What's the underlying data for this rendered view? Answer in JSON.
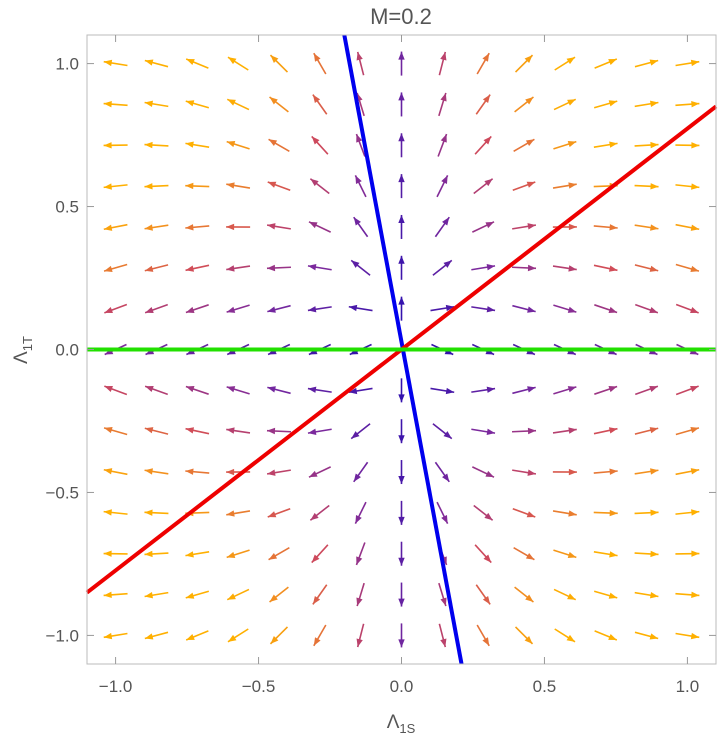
{
  "chart_data": {
    "type": "stream",
    "title": "M=0.2",
    "xlabel": {
      "base": "Λ",
      "sub": "1S"
    },
    "ylabel": {
      "base": "Λ",
      "sub": "1T"
    },
    "xlim": [
      -1.1,
      1.1
    ],
    "ylim": [
      -1.1,
      1.1
    ],
    "xticks": [
      -1.0,
      -0.5,
      0.0,
      0.5,
      1.0
    ],
    "yticks": [
      -1.0,
      -0.5,
      0.0,
      0.5,
      1.0
    ],
    "xtick_labels": [
      "−1.0",
      "−0.5",
      "0.0",
      "0.5",
      "1.0"
    ],
    "ytick_labels": [
      "−1.0",
      "−0.5",
      "0.0",
      "0.5",
      "1.0"
    ],
    "grid": false,
    "field": {
      "x_range": [
        -1.0,
        1.0
      ],
      "y_range": [
        -1.0,
        1.0
      ],
      "samples_per_axis": 15,
      "colormap": [
        "#2a0fb0",
        "#7e2a9c",
        "#d04a5a",
        "#f08a24",
        "#ffb000"
      ]
    },
    "lines": [
      {
        "color": "#0000ee",
        "points": [
          [
            -0.2,
            1.1
          ],
          [
            0.21,
            -1.1
          ]
        ]
      },
      {
        "color": "#ee0000",
        "points": [
          [
            -1.1,
            -0.85
          ],
          [
            1.1,
            0.85
          ]
        ]
      },
      {
        "color": "#22e000",
        "points": [
          [
            -1.1,
            0.0
          ],
          [
            1.1,
            0.0
          ]
        ]
      }
    ]
  }
}
